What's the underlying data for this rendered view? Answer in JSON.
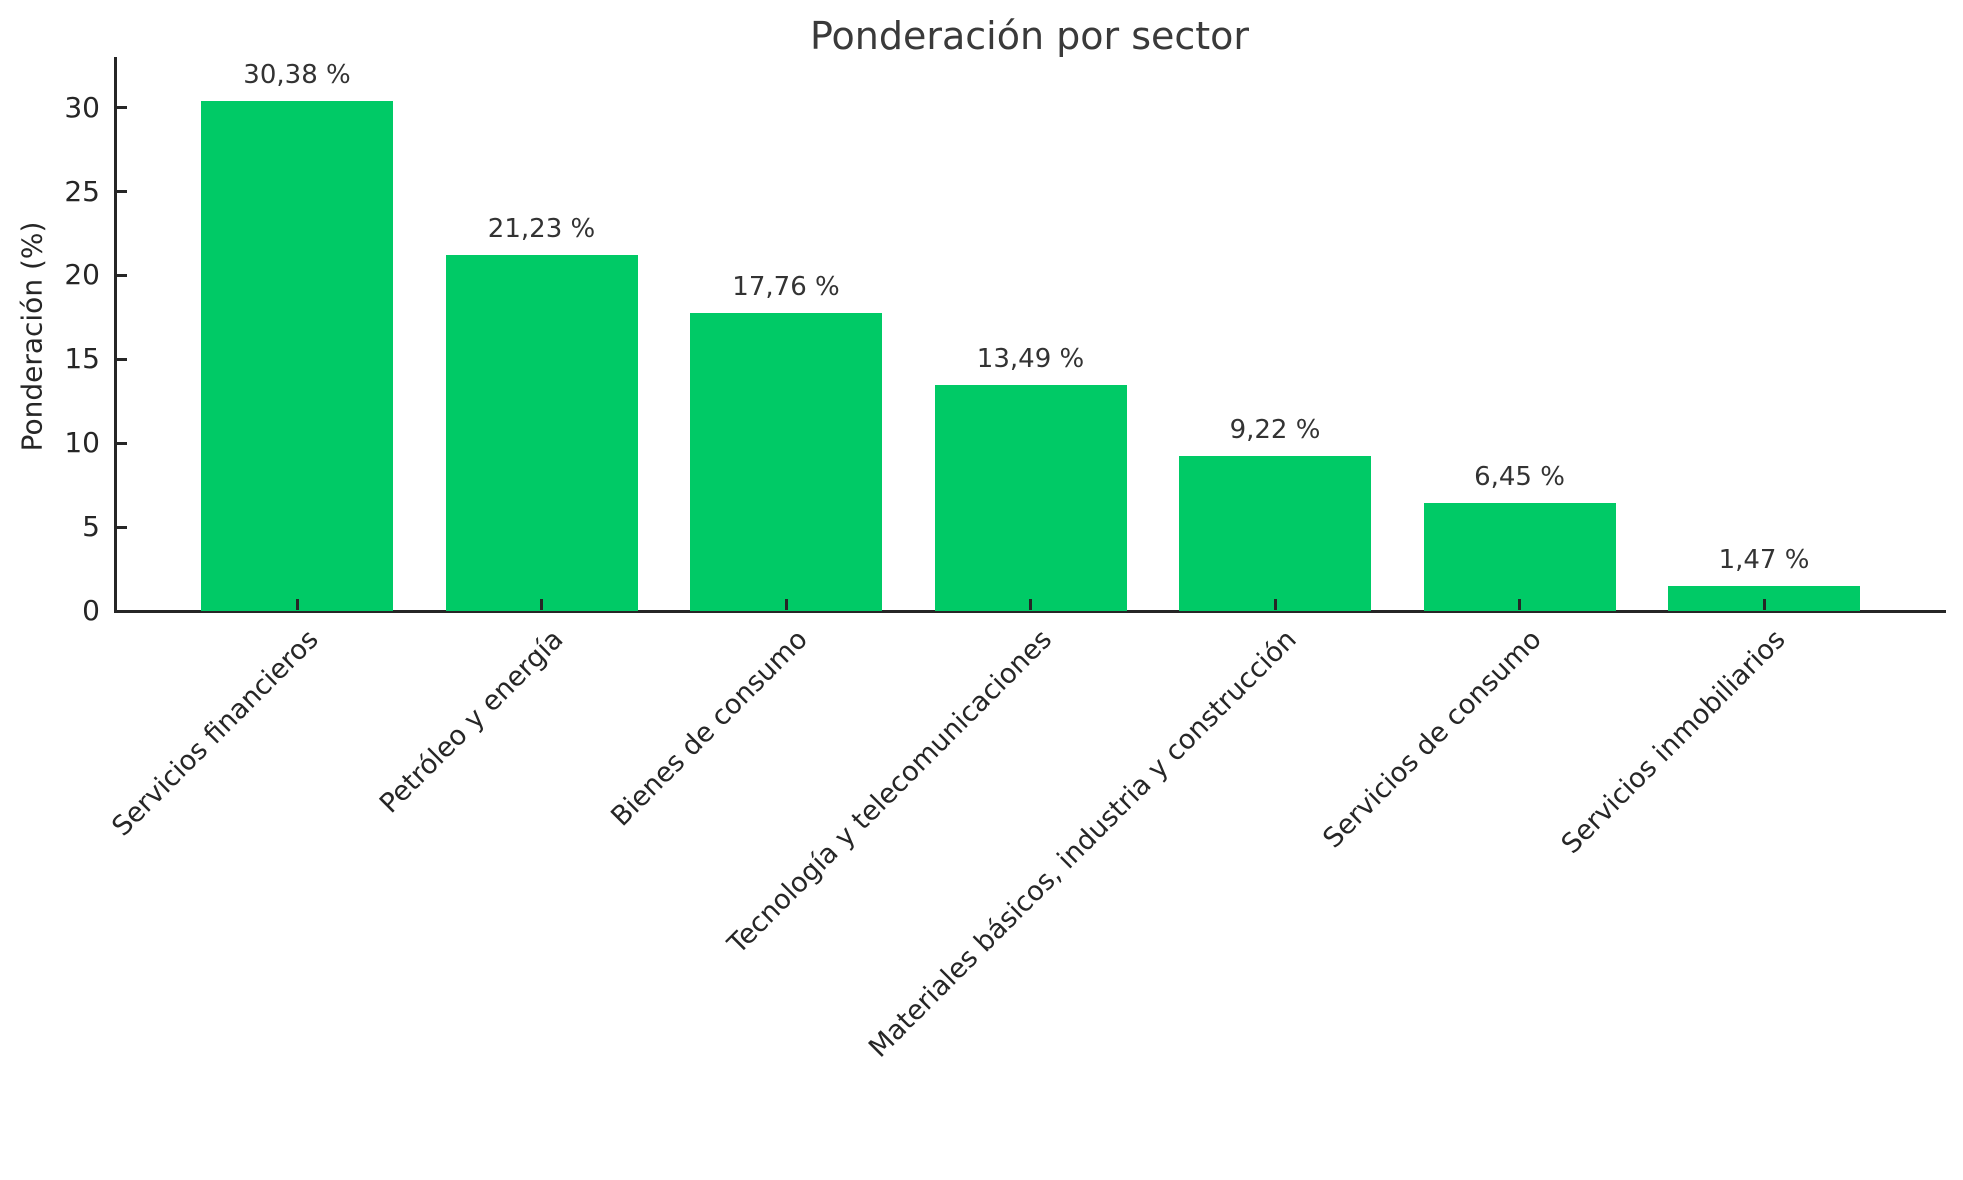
{
  "title": "Ponderación por sector",
  "chart_data": {
    "type": "bar",
    "title": "Ponderación por sector",
    "xlabel": "",
    "ylabel": "Ponderación (%)",
    "categories": [
      "Servicios financieros",
      "Petróleo y energía",
      "Bienes de consumo",
      "Tecnología y telecomunicaciones",
      "Materiales básicos, industria y construcción",
      "Servicios de consumo",
      "Servicios inmobiliarios"
    ],
    "values": [
      30.38,
      21.23,
      17.76,
      13.49,
      9.22,
      6.45,
      1.47
    ],
    "value_labels": [
      "30,38 %",
      "21,23 %",
      "17,76 %",
      "13,49 %",
      "9,22 %",
      "6,45 %",
      "1,47 %"
    ],
    "yticks": [
      0,
      5,
      10,
      15,
      20,
      25,
      30
    ],
    "ylim": [
      0,
      32.96
    ],
    "grid": false,
    "legend": null,
    "bar_color": "#00ca66",
    "text_color": "#262626"
  }
}
